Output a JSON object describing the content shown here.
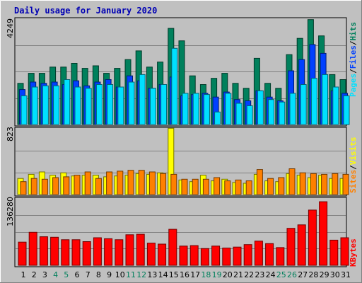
{
  "title": "Daily usage for January 2020",
  "colors": {
    "background": "#c0c0c0",
    "border": "#ffffff",
    "hits": "#00805c",
    "files": "#0040ff",
    "pages": "#00e0ff",
    "visits": "#ffff00",
    "sites": "#ff8000",
    "kbytes": "#ff0000",
    "title": "#0000b4",
    "weekend_label": "#00805c",
    "weekday_label": "#000000",
    "gridline": "#808080"
  },
  "legends": {
    "top": [
      "Pages",
      "/",
      "Files",
      "/",
      "Hits"
    ],
    "middle": [
      "Sites",
      "/",
      "Visits"
    ],
    "bottom": [
      "KBytes"
    ]
  },
  "chart_data": [
    {
      "type": "bar",
      "name": "hits-files-pages",
      "ymax_label": "4249",
      "ylim": [
        0,
        4249
      ],
      "categories": [
        "1",
        "2",
        "3",
        "4",
        "5",
        "6",
        "7",
        "8",
        "9",
        "10",
        "11",
        "12",
        "13",
        "14",
        "15",
        "16",
        "17",
        "18",
        "19",
        "20",
        "21",
        "22",
        "23",
        "24",
        "25",
        "26",
        "27",
        "28",
        "29",
        "30",
        "31"
      ],
      "weekend_days": [
        "4",
        "5",
        "11",
        "12",
        "18",
        "19",
        "25",
        "26"
      ],
      "series": [
        {
          "name": "Hits",
          "values": [
            1650,
            2050,
            2050,
            2300,
            2300,
            2450,
            2250,
            2350,
            2050,
            2250,
            2600,
            2950,
            2300,
            2500,
            3850,
            3350,
            1950,
            1600,
            1850,
            2050,
            1650,
            1450,
            2650,
            1650,
            1450,
            2800,
            3450,
            4200,
            3550,
            2000,
            1800
          ]
        },
        {
          "name": "Files",
          "values": [
            1400,
            1700,
            1650,
            1700,
            1600,
            1750,
            1550,
            1700,
            1800,
            1500,
            1950,
            1750,
            1450,
            1600,
            1900,
            1150,
            1200,
            1250,
            1100,
            1300,
            1000,
            950,
            1350,
            1100,
            950,
            2150,
            2600,
            3200,
            2850,
            1350,
            1250
          ]
        },
        {
          "name": "Pages",
          "values": [
            1150,
            1500,
            1550,
            1550,
            1800,
            1500,
            1450,
            1600,
            1600,
            1500,
            1700,
            2000,
            1450,
            1600,
            3050,
            1250,
            1250,
            1200,
            500,
            1250,
            850,
            750,
            1350,
            1000,
            900,
            1250,
            1600,
            1850,
            2000,
            1500,
            1150
          ]
        }
      ]
    },
    {
      "type": "bar",
      "name": "visits-sites",
      "ymax_label": "823",
      "ylim": [
        0,
        823
      ],
      "categories": [
        "1",
        "2",
        "3",
        "4",
        "5",
        "6",
        "7",
        "8",
        "9",
        "10",
        "11",
        "12",
        "13",
        "14",
        "15",
        "16",
        "17",
        "18",
        "19",
        "20",
        "21",
        "22",
        "23",
        "24",
        "25",
        "26",
        "27",
        "28",
        "29",
        "30",
        "31"
      ],
      "series": [
        {
          "name": "Visits",
          "values": [
            200,
            250,
            280,
            240,
            270,
            230,
            240,
            240,
            220,
            230,
            240,
            260,
            250,
            270,
            820,
            180,
            160,
            240,
            170,
            190,
            150,
            140,
            250,
            170,
            160,
            260,
            240,
            210,
            240,
            200,
            200
          ]
        },
        {
          "name": "Sites",
          "values": [
            160,
            200,
            190,
            210,
            220,
            240,
            280,
            200,
            280,
            290,
            300,
            300,
            280,
            260,
            250,
            190,
            190,
            190,
            210,
            170,
            180,
            170,
            310,
            200,
            210,
            320,
            270,
            260,
            250,
            260,
            250
          ]
        }
      ]
    },
    {
      "type": "bar",
      "name": "kbytes",
      "ymax_label": "136280",
      "ylim": [
        0,
        136280
      ],
      "categories": [
        "1",
        "2",
        "3",
        "4",
        "5",
        "6",
        "7",
        "8",
        "9",
        "10",
        "11",
        "12",
        "13",
        "14",
        "15",
        "16",
        "17",
        "18",
        "19",
        "20",
        "21",
        "22",
        "23",
        "24",
        "25",
        "26",
        "27",
        "28",
        "29",
        "30",
        "31"
      ],
      "series": [
        {
          "name": "KBytes",
          "values": [
            47000,
            67000,
            58000,
            57000,
            52000,
            52000,
            48000,
            56000,
            54000,
            52000,
            62000,
            63000,
            45000,
            43000,
            73000,
            39000,
            40000,
            34000,
            39000,
            35000,
            37000,
            42000,
            49000,
            44000,
            36000,
            75000,
            82000,
            112000,
            129000,
            51000,
            56000
          ]
        }
      ]
    }
  ]
}
